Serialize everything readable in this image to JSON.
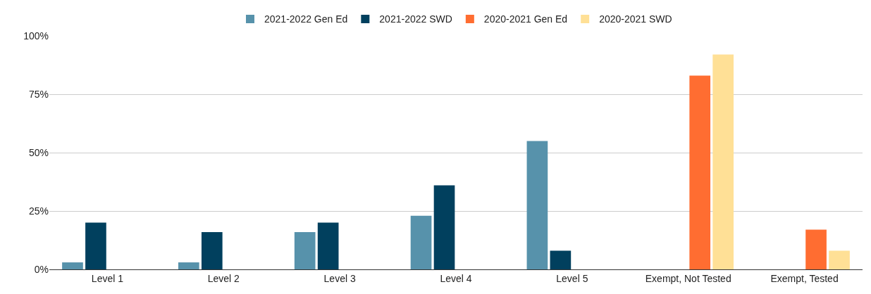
{
  "chart_data": {
    "type": "bar",
    "categories": [
      "Level 1",
      "Level 2",
      "Level 3",
      "Level 4",
      "Level 5",
      "Exempt, Not Tested",
      "Exempt, Tested"
    ],
    "series": [
      {
        "name": "2021-2022 Gen Ed",
        "color": "#5792ab",
        "values": [
          3,
          3,
          16,
          23,
          55,
          null,
          null
        ]
      },
      {
        "name": "2021-2022 SWD",
        "color": "#01405e",
        "values": [
          20,
          16,
          20,
          36,
          8,
          null,
          null
        ]
      },
      {
        "name": "2020-2021 Gen Ed",
        "color": "#ff6d31",
        "values": [
          null,
          null,
          null,
          null,
          null,
          83,
          17
        ]
      },
      {
        "name": "2020-2021 SWD",
        "color": "#ffe096",
        "values": [
          null,
          null,
          null,
          null,
          null,
          92,
          8
        ]
      }
    ],
    "ylim": [
      0,
      100
    ],
    "yticks": [
      {
        "value": 0,
        "label": "0%"
      },
      {
        "value": 25,
        "label": "25%"
      },
      {
        "value": 50,
        "label": "50%"
      },
      {
        "value": 75,
        "label": "75%"
      },
      {
        "value": 100,
        "label": "100%"
      }
    ],
    "grid": "y",
    "legend": "top"
  }
}
